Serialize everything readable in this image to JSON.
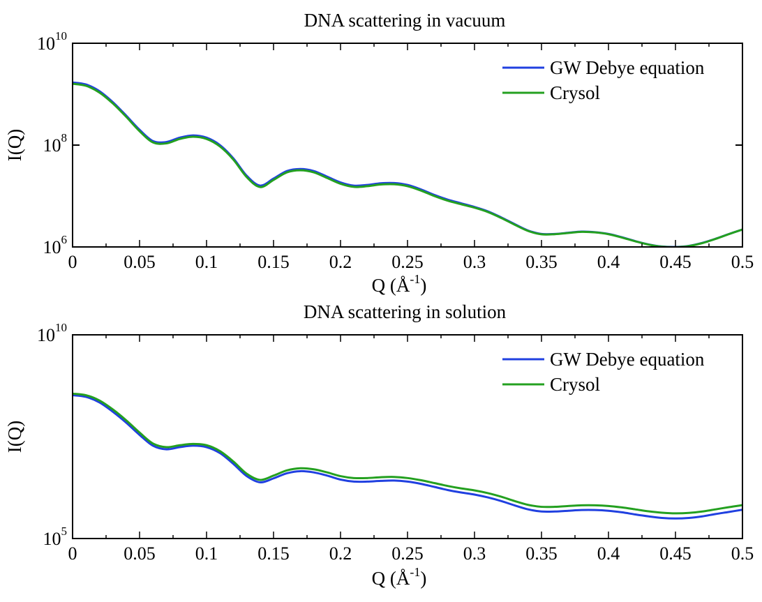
{
  "chart_data": [
    {
      "type": "line",
      "title": "DNA scattering in vacuum",
      "xlabel": "Q (Å-1)",
      "ylabel": "I(Q)",
      "yscale": "log",
      "xlim": [
        0,
        0.5
      ],
      "ylim": [
        1000000,
        10000000000
      ],
      "x_ticks": [
        "0",
        "0.05",
        "0.1",
        "0.15",
        "0.2",
        "0.25",
        "0.3",
        "0.35",
        "0.4",
        "0.45",
        "0.5"
      ],
      "y_ticks": [
        {
          "mantissa": "10",
          "exponent": "6",
          "value": 1000000
        },
        {
          "mantissa": "10",
          "exponent": "8",
          "value": 100000000
        },
        {
          "mantissa": "10",
          "exponent": "10",
          "value": 10000000000
        }
      ],
      "grid": false,
      "legend_position": "top-right",
      "series": [
        {
          "name": "GW Debye equation",
          "color": "#2040e0",
          "points": [
            [
              0,
              1700000000
            ],
            [
              0.01,
              1550000000
            ],
            [
              0.02,
              1150000000
            ],
            [
              0.03,
              700000000
            ],
            [
              0.04,
              380000000
            ],
            [
              0.05,
              200000000
            ],
            [
              0.06,
              120000000
            ],
            [
              0.07,
              115000000
            ],
            [
              0.08,
              140000000
            ],
            [
              0.09,
              155000000
            ],
            [
              0.1,
              140000000
            ],
            [
              0.11,
              100000000
            ],
            [
              0.12,
              55000000
            ],
            [
              0.13,
              25000000
            ],
            [
              0.14,
              16000000
            ],
            [
              0.15,
              22000000
            ],
            [
              0.16,
              31000000
            ],
            [
              0.17,
              34000000
            ],
            [
              0.18,
              31000000
            ],
            [
              0.19,
              24000000
            ],
            [
              0.2,
              18500000
            ],
            [
              0.21,
              16000000
            ],
            [
              0.22,
              16500000
            ],
            [
              0.23,
              17800000
            ],
            [
              0.24,
              18000000
            ],
            [
              0.25,
              16500000
            ],
            [
              0.26,
              13500000
            ],
            [
              0.27,
              10500000
            ],
            [
              0.28,
              8500000
            ],
            [
              0.29,
              7200000
            ],
            [
              0.3,
              6100000
            ],
            [
              0.31,
              5000000
            ],
            [
              0.32,
              3800000
            ],
            [
              0.33,
              2800000
            ],
            [
              0.34,
              2100000
            ],
            [
              0.35,
              1800000
            ],
            [
              0.36,
              1800000
            ],
            [
              0.37,
              1900000
            ],
            [
              0.38,
              2000000
            ],
            [
              0.39,
              1950000
            ],
            [
              0.4,
              1800000
            ],
            [
              0.41,
              1550000
            ],
            [
              0.42,
              1300000
            ],
            [
              0.43,
              1120000
            ],
            [
              0.44,
              1020000
            ],
            [
              0.45,
              1000000
            ],
            [
              0.46,
              1050000
            ],
            [
              0.47,
              1200000
            ],
            [
              0.48,
              1450000
            ],
            [
              0.49,
              1800000
            ],
            [
              0.5,
              2200000
            ]
          ]
        },
        {
          "name": "Crysol",
          "color": "#24a020",
          "points": [
            [
              0,
              1600000000
            ],
            [
              0.01,
              1460000000
            ],
            [
              0.02,
              1080000000
            ],
            [
              0.03,
              660000000
            ],
            [
              0.04,
              360000000
            ],
            [
              0.05,
              188000000
            ],
            [
              0.06,
              113000000
            ],
            [
              0.07,
              108000000
            ],
            [
              0.08,
              132000000
            ],
            [
              0.09,
              146000000
            ],
            [
              0.1,
              132000000
            ],
            [
              0.11,
              94000000
            ],
            [
              0.12,
              52000000
            ],
            [
              0.13,
              23500000
            ],
            [
              0.14,
              15000000
            ],
            [
              0.15,
              20700000
            ],
            [
              0.16,
              29200000
            ],
            [
              0.17,
              32000000
            ],
            [
              0.18,
              29200000
            ],
            [
              0.19,
              22600000
            ],
            [
              0.2,
              17400000
            ],
            [
              0.21,
              15100000
            ],
            [
              0.22,
              15600000
            ],
            [
              0.23,
              16800000
            ],
            [
              0.24,
              17000000
            ],
            [
              0.25,
              15600000
            ],
            [
              0.26,
              12800000
            ],
            [
              0.27,
              10000000
            ],
            [
              0.28,
              8100000
            ],
            [
              0.29,
              6900000
            ],
            [
              0.3,
              5900000
            ],
            [
              0.31,
              4850000
            ],
            [
              0.32,
              3700000
            ],
            [
              0.33,
              2730000
            ],
            [
              0.34,
              2060000
            ],
            [
              0.35,
              1770000
            ],
            [
              0.36,
              1780000
            ],
            [
              0.37,
              1880000
            ],
            [
              0.38,
              1980000
            ],
            [
              0.39,
              1930000
            ],
            [
              0.4,
              1780000
            ],
            [
              0.41,
              1530000
            ],
            [
              0.42,
              1290000
            ],
            [
              0.43,
              1110000
            ],
            [
              0.44,
              1010000
            ],
            [
              0.45,
              990000
            ],
            [
              0.46,
              1040000
            ],
            [
              0.47,
              1190000
            ],
            [
              0.48,
              1440000
            ],
            [
              0.49,
              1790000
            ],
            [
              0.5,
              2200000
            ]
          ]
        }
      ]
    },
    {
      "type": "line",
      "title": "DNA scattering in solution",
      "xlabel": "Q (Å-1)",
      "ylabel": "I(Q)",
      "yscale": "log",
      "xlim": [
        0,
        0.5
      ],
      "ylim": [
        100000,
        10000000000
      ],
      "x_ticks": [
        "0",
        "0.05",
        "0.1",
        "0.15",
        "0.2",
        "0.25",
        "0.3",
        "0.35",
        "0.4",
        "0.45",
        "0.5"
      ],
      "y_ticks": [
        {
          "mantissa": "10",
          "exponent": "5",
          "value": 100000
        },
        {
          "mantissa": "10",
          "exponent": "10",
          "value": 10000000000
        }
      ],
      "grid": false,
      "legend_position": "top-right",
      "series": [
        {
          "name": "GW Debye equation",
          "color": "#2040e0",
          "points": [
            [
              0,
              330000000
            ],
            [
              0.01,
              300000000
            ],
            [
              0.02,
              220000000
            ],
            [
              0.03,
              130000000
            ],
            [
              0.04,
              70000000
            ],
            [
              0.05,
              35000000
            ],
            [
              0.06,
              19000000
            ],
            [
              0.07,
              15500000
            ],
            [
              0.08,
              17500000
            ],
            [
              0.09,
              19000000
            ],
            [
              0.1,
              17500000
            ],
            [
              0.11,
              12500000
            ],
            [
              0.12,
              6800000
            ],
            [
              0.13,
              3400000
            ],
            [
              0.14,
              2400000
            ],
            [
              0.15,
              3000000
            ],
            [
              0.16,
              4000000
            ],
            [
              0.17,
              4500000
            ],
            [
              0.18,
              4200000
            ],
            [
              0.19,
              3500000
            ],
            [
              0.2,
              2800000
            ],
            [
              0.21,
              2500000
            ],
            [
              0.22,
              2500000
            ],
            [
              0.23,
              2600000
            ],
            [
              0.24,
              2650000
            ],
            [
              0.25,
              2500000
            ],
            [
              0.26,
              2200000
            ],
            [
              0.27,
              1850000
            ],
            [
              0.28,
              1550000
            ],
            [
              0.29,
              1350000
            ],
            [
              0.3,
              1200000
            ],
            [
              0.31,
              1020000
            ],
            [
              0.32,
              830000
            ],
            [
              0.33,
              650000
            ],
            [
              0.34,
              520000
            ],
            [
              0.35,
              460000
            ],
            [
              0.36,
              460000
            ],
            [
              0.37,
              480000
            ],
            [
              0.38,
              500000
            ],
            [
              0.39,
              500000
            ],
            [
              0.4,
              480000
            ],
            [
              0.41,
              440000
            ],
            [
              0.42,
              390000
            ],
            [
              0.43,
              350000
            ],
            [
              0.44,
              320000
            ],
            [
              0.45,
              310000
            ],
            [
              0.46,
              320000
            ],
            [
              0.47,
              350000
            ],
            [
              0.48,
              400000
            ],
            [
              0.49,
              450000
            ],
            [
              0.5,
              510000
            ]
          ]
        },
        {
          "name": "Crysol",
          "color": "#24a020",
          "points": [
            [
              0,
              360000000
            ],
            [
              0.01,
              330000000
            ],
            [
              0.02,
              245000000
            ],
            [
              0.03,
              148000000
            ],
            [
              0.04,
              80000000
            ],
            [
              0.05,
              40000000
            ],
            [
              0.06,
              21500000
            ],
            [
              0.07,
              17500000
            ],
            [
              0.08,
              19500000
            ],
            [
              0.09,
              21000000
            ],
            [
              0.1,
              19500000
            ],
            [
              0.11,
              14000000
            ],
            [
              0.12,
              7800000
            ],
            [
              0.13,
              3900000
            ],
            [
              0.14,
              2750000
            ],
            [
              0.15,
              3500000
            ],
            [
              0.16,
              4700000
            ],
            [
              0.17,
              5300000
            ],
            [
              0.18,
              5000000
            ],
            [
              0.19,
              4200000
            ],
            [
              0.2,
              3400000
            ],
            [
              0.21,
              3050000
            ],
            [
              0.22,
              3050000
            ],
            [
              0.23,
              3200000
            ],
            [
              0.24,
              3250000
            ],
            [
              0.25,
              3050000
            ],
            [
              0.26,
              2700000
            ],
            [
              0.27,
              2300000
            ],
            [
              0.28,
              1950000
            ],
            [
              0.29,
              1700000
            ],
            [
              0.3,
              1520000
            ],
            [
              0.31,
              1300000
            ],
            [
              0.32,
              1060000
            ],
            [
              0.33,
              830000
            ],
            [
              0.34,
              670000
            ],
            [
              0.35,
              600000
            ],
            [
              0.36,
              600000
            ],
            [
              0.37,
              630000
            ],
            [
              0.38,
              655000
            ],
            [
              0.39,
              655000
            ],
            [
              0.4,
              630000
            ],
            [
              0.41,
              580000
            ],
            [
              0.42,
              520000
            ],
            [
              0.43,
              465000
            ],
            [
              0.44,
              430000
            ],
            [
              0.45,
              415000
            ],
            [
              0.46,
              425000
            ],
            [
              0.47,
              460000
            ],
            [
              0.48,
              520000
            ],
            [
              0.49,
              590000
            ],
            [
              0.5,
              660000
            ]
          ]
        }
      ]
    }
  ]
}
